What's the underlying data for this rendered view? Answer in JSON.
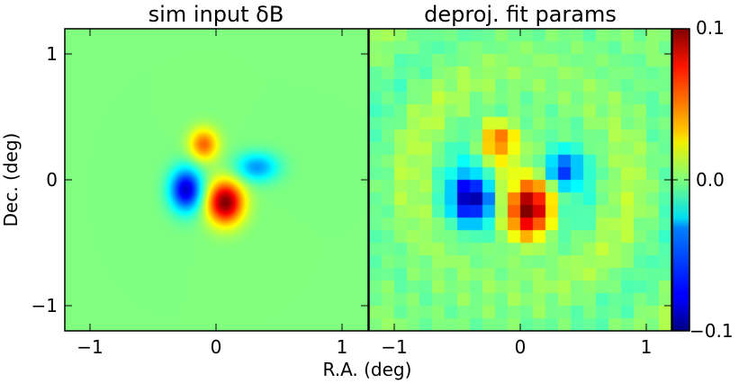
{
  "chart_data": [
    {
      "type": "heatmap",
      "title": "sim input δB",
      "xlabel": "R.A. (deg)",
      "ylabel": "Dec. (deg)",
      "xlim": [
        -1.2,
        1.2
      ],
      "ylim": [
        -1.2,
        1.2
      ],
      "xticks": [
        "−1",
        "0",
        "1"
      ],
      "yticks": [
        "1",
        "0",
        "−1"
      ],
      "blobs": [
        {
          "x": -0.1,
          "y": 0.28,
          "sx": 0.08,
          "sy": 0.09,
          "amp": 0.055
        },
        {
          "x": 0.07,
          "y": -0.18,
          "sx": 0.1,
          "sy": 0.12,
          "amp": 0.1
        },
        {
          "x": -0.24,
          "y": -0.08,
          "sx": 0.09,
          "sy": 0.12,
          "amp": -0.085
        },
        {
          "x": 0.32,
          "y": 0.1,
          "sx": 0.12,
          "sy": 0.08,
          "amp": -0.045
        }
      ]
    },
    {
      "type": "heatmap",
      "title": "deproj. fit params",
      "xlabel": "R.A. (deg)",
      "xlim": [
        -1.2,
        1.2
      ],
      "ylim": [
        -1.2,
        1.2
      ],
      "xticks": [
        "−1",
        "0",
        "1"
      ],
      "grid_cells": 24,
      "blobs": [
        {
          "x": -0.18,
          "y": 0.32,
          "sx": 0.1,
          "sy": 0.1,
          "amp": 0.06
        },
        {
          "x": 0.07,
          "y": -0.25,
          "sx": 0.12,
          "sy": 0.15,
          "amp": 0.1
        },
        {
          "x": -0.38,
          "y": -0.15,
          "sx": 0.12,
          "sy": 0.14,
          "amp": -0.09
        },
        {
          "x": 0.33,
          "y": 0.08,
          "sx": 0.1,
          "sy": 0.1,
          "amp": -0.065
        }
      ],
      "ring_amplitude": 0.018
    }
  ],
  "colorbar": {
    "range": [
      -0.1,
      0.1
    ],
    "ticks": [
      "0.1",
      "0.0",
      "−0.1"
    ]
  }
}
